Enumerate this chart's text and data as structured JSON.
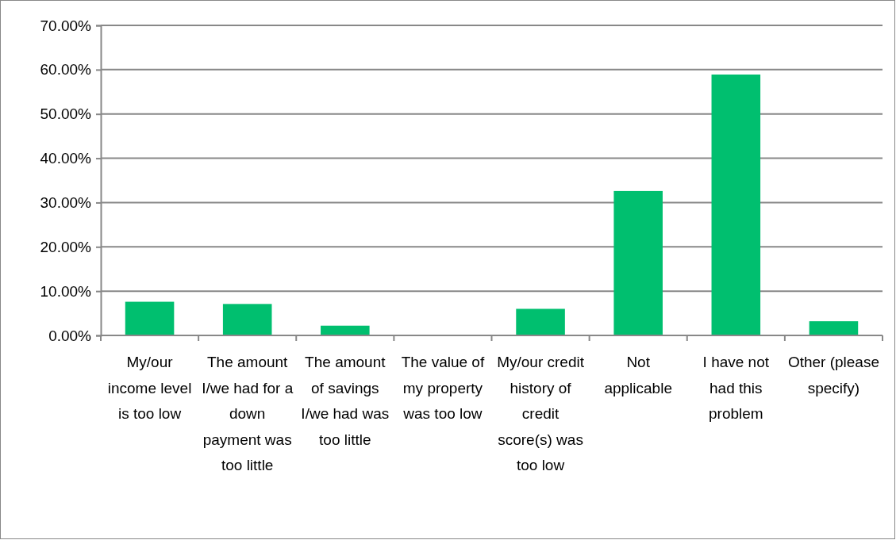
{
  "chart_data": {
    "type": "bar",
    "categories": [
      "My/our income level is too low",
      "The amount I/we had for a down payment was too little",
      "The amount of savings I/we had was too little",
      "The value of my property was too low",
      "My/our credit history of credit score(s) was too low",
      "Not applicable",
      "I have not had this problem",
      "Other (please specify)"
    ],
    "values": [
      7.6,
      7.1,
      2.2,
      0,
      6.0,
      32.6,
      58.9,
      3.2
    ],
    "color": "#00bf6f",
    "ylim": [
      0,
      70
    ],
    "yticks": [
      {
        "value": 0,
        "label": "0.00%"
      },
      {
        "value": 10,
        "label": "10.00%"
      },
      {
        "value": 20,
        "label": "20.00%"
      },
      {
        "value": 30,
        "label": "30.00%"
      },
      {
        "value": 40,
        "label": "40.00%"
      },
      {
        "value": 50,
        "label": "50.00%"
      },
      {
        "value": 60,
        "label": "60.00%"
      },
      {
        "value": 70,
        "label": "70.00%"
      }
    ],
    "grid": "y"
  }
}
